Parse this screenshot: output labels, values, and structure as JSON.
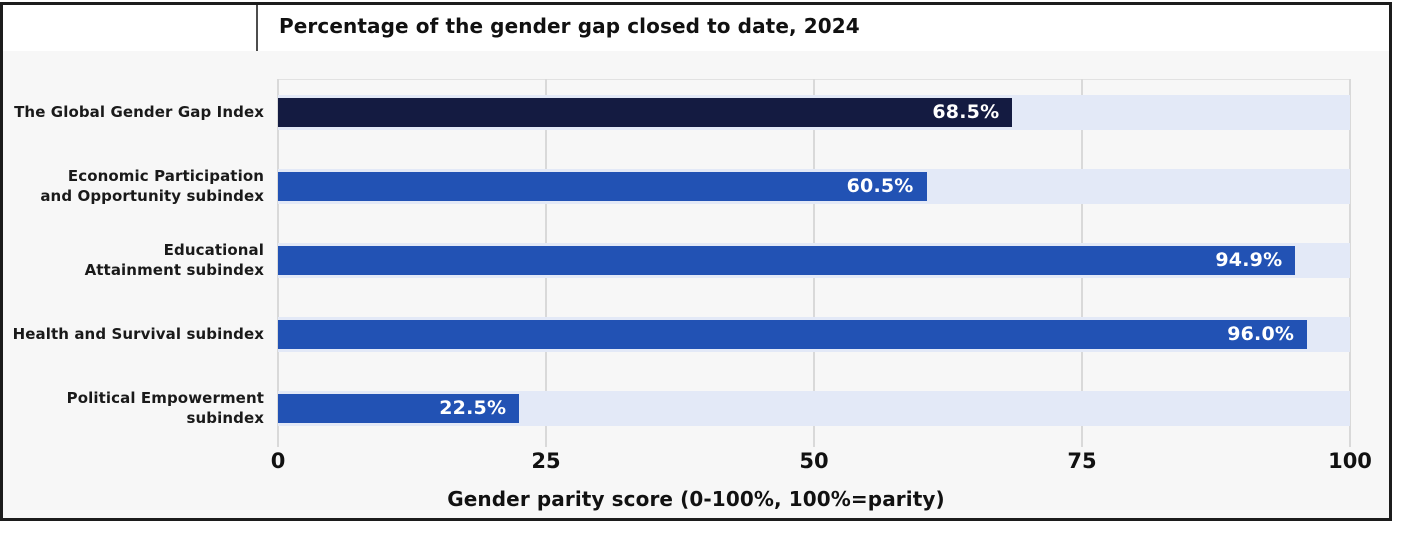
{
  "chart": {
    "title": "Percentage of the gender gap closed to date, 2024"
  },
  "chart_data": {
    "type": "bar",
    "orientation": "horizontal",
    "title": "Percentage of the gender gap closed to date, 2024",
    "xlabel": "Gender parity score (0-100%, 100%=parity)",
    "xlim": [
      0,
      100
    ],
    "xticks": [
      "0",
      "25",
      "50",
      "75",
      "100"
    ],
    "xtick_values": [
      0,
      25,
      50,
      75,
      100
    ],
    "grid": true,
    "categories": [
      "The Global Gender Gap Index",
      "Economic Participation\nand Opportunity subindex",
      "Educational\nAttainment subindex",
      "Health and Survival subindex",
      "Political Empowerment\nsubindex"
    ],
    "values": [
      68.5,
      60.5,
      94.9,
      96.0,
      22.5
    ],
    "value_labels": [
      "68.5%",
      "60.5%",
      "94.9%",
      "96.0%",
      "22.5%"
    ],
    "bar_colors": [
      "#141b41",
      "#2252b4",
      "#2252b4",
      "#2252b4",
      "#2252b4"
    ],
    "colors": {
      "highlight_bar": "#141b41",
      "default_bar": "#2252b4",
      "track": "#e3e9f7",
      "plot_background": "#f7f7f7",
      "gridline": "#d9d9d9",
      "text": "#111111",
      "value_text": "#ffffff",
      "border": "#1c1c1c"
    }
  }
}
